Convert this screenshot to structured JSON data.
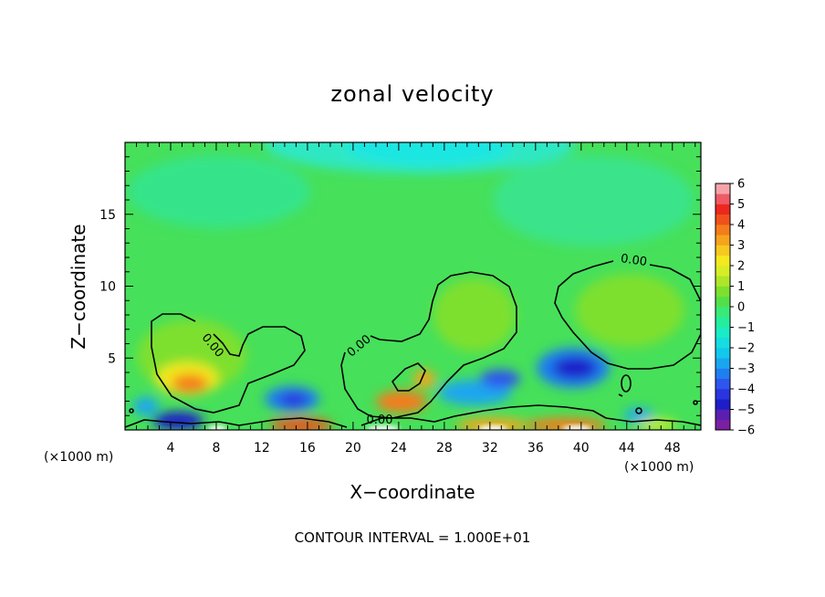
{
  "chart_data": {
    "type": "heatmap",
    "title": "zonal velocity",
    "xlabel": "X−coordinate",
    "ylabel": "Z−coordinate",
    "x_unit_left": "(×1000 m)",
    "x_unit_right": "(×1000 m)",
    "xlim": [
      0,
      50.5
    ],
    "ylim": [
      0,
      20
    ],
    "x_ticks": [
      "4",
      "8",
      "12",
      "16",
      "20",
      "24",
      "28",
      "32",
      "36",
      "40",
      "44",
      "48"
    ],
    "x_tick_values": [
      4,
      8,
      12,
      16,
      20,
      24,
      28,
      32,
      36,
      40,
      44,
      48
    ],
    "y_ticks": [
      "5",
      "10",
      "15"
    ],
    "y_tick_values": [
      5,
      10,
      15
    ],
    "colorbar": {
      "ticks": [
        "6",
        "5",
        "4",
        "3",
        "2",
        "1",
        "0",
        "−1",
        "−2",
        "−3",
        "−4",
        "−5",
        "−6"
      ],
      "range": [
        -6,
        6
      ],
      "levels": 24,
      "colors": [
        "#7b1fa2",
        "#5a1fb0",
        "#1e1ec8",
        "#2a35e0",
        "#2e55ee",
        "#1f7ef0",
        "#1aa6ef",
        "#12c8ec",
        "#16dddf",
        "#1aecc6",
        "#24ee9e",
        "#38ea78",
        "#52e04a",
        "#7ee02e",
        "#aee62a",
        "#d6ee26",
        "#f4e81e",
        "#f7c820",
        "#f6a41c",
        "#f47c1a",
        "#f0501c",
        "#ec281e",
        "#ef5a66",
        "#f5a3a8"
      ]
    },
    "contour_labels": [
      "0.00",
      "0.00",
      "0.00",
      "0.00"
    ],
    "annotation": "CONTOUR INTERVAL = 1.000E+01"
  }
}
